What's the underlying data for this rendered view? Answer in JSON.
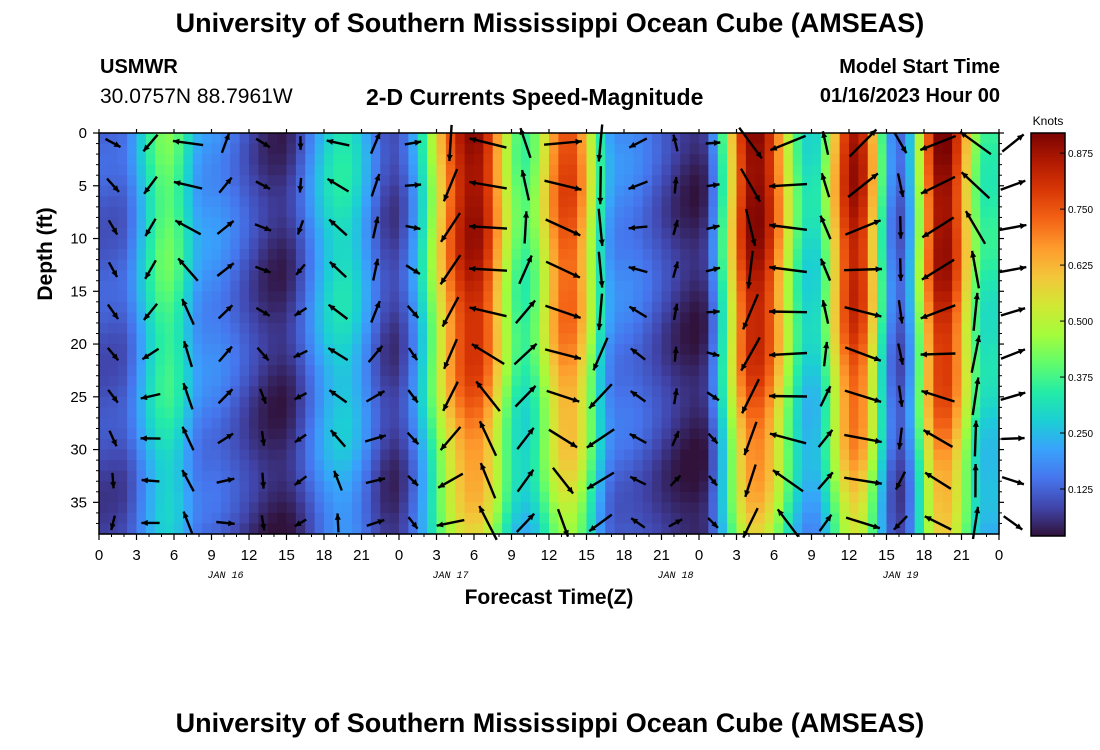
{
  "header": {
    "title": "University of Southern Mississippi Ocean Cube (AMSEAS)",
    "station": "USMWR",
    "coordinates": "30.0757N  88.7961W",
    "subtitle": "2-D Currents Speed-Magnitude",
    "model_start_label": "Model Start Time",
    "model_start_value": "01/16/2023 Hour 00"
  },
  "footer": {
    "title": "University of Southern Mississippi Ocean Cube (AMSEAS)"
  },
  "chart_data": {
    "type": "heatmap",
    "title": "2-D Currents Speed-Magnitude",
    "xlabel": "Forecast Time(Z)",
    "ylabel": "Depth (ft)",
    "x_unit": "hours since 01/16/2023 00Z",
    "xlim": [
      0,
      72
    ],
    "ylim": [
      0,
      38
    ],
    "x_ticks": [
      0,
      3,
      6,
      9,
      12,
      15,
      18,
      21,
      24,
      27,
      30,
      33,
      36,
      39,
      42,
      45,
      48,
      51,
      54,
      57,
      60,
      63,
      66,
      69,
      72
    ],
    "x_tick_labels": [
      "0",
      "3",
      "6",
      "9",
      "12",
      "15",
      "18",
      "21",
      "0",
      "3",
      "6",
      "9",
      "12",
      "15",
      "18",
      "21",
      "0",
      "3",
      "6",
      "9",
      "12",
      "15",
      "18",
      "21",
      "0"
    ],
    "y_ticks": [
      0,
      5,
      10,
      15,
      20,
      25,
      30,
      35
    ],
    "y_tick_labels": [
      "0",
      "5",
      "10",
      "15",
      "20",
      "25",
      "30",
      "35"
    ],
    "day_labels": [
      {
        "x": 9,
        "text": "JAN 16"
      },
      {
        "x": 27,
        "text": "JAN 17"
      },
      {
        "x": 45,
        "text": "JAN 18"
      },
      {
        "x": 63,
        "text": "JAN 19"
      }
    ],
    "colorbar": {
      "label": "Knots",
      "min": 0.02,
      "max": 0.92,
      "ticks": [
        0.125,
        0.25,
        0.375,
        0.5,
        0.625,
        0.75,
        0.875
      ],
      "tick_labels": [
        "0.125",
        "0.250",
        "0.375",
        "0.500",
        "0.625",
        "0.750",
        "0.875"
      ],
      "colors": [
        "#30123b",
        "#4145ab",
        "#4675ed",
        "#39a2fc",
        "#1bcfd4",
        "#24eca6",
        "#61fc6c",
        "#a4fc3b",
        "#d1e834",
        "#f3c63a",
        "#fe9b2d",
        "#f36315",
        "#d93806",
        "#b11901",
        "#7a0403"
      ]
    },
    "speed_peaks_knots": [
      {
        "x": 1.5,
        "value": 0.12
      },
      {
        "x": 5.5,
        "value": 0.42
      },
      {
        "x": 8.5,
        "value": 0.2
      },
      {
        "x": 14.5,
        "value": 0.05
      },
      {
        "x": 19.5,
        "value": 0.33
      },
      {
        "x": 23.5,
        "value": 0.08
      },
      {
        "x": 30.0,
        "value": 0.9
      },
      {
        "x": 34.0,
        "value": 0.38
      },
      {
        "x": 37.5,
        "value": 0.78
      },
      {
        "x": 41.5,
        "value": 0.18
      },
      {
        "x": 48.0,
        "value": 0.04
      },
      {
        "x": 52.5,
        "value": 0.92
      },
      {
        "x": 57.0,
        "value": 0.3
      },
      {
        "x": 60.5,
        "value": 0.88
      },
      {
        "x": 64.0,
        "value": 0.12
      },
      {
        "x": 67.5,
        "value": 0.92
      },
      {
        "x": 71.0,
        "value": 0.35
      }
    ],
    "vector_x_spacing_hours": 3,
    "vector_depths_ft": [
      0,
      4,
      8,
      12,
      16,
      20,
      24,
      28,
      32,
      36
    ]
  }
}
